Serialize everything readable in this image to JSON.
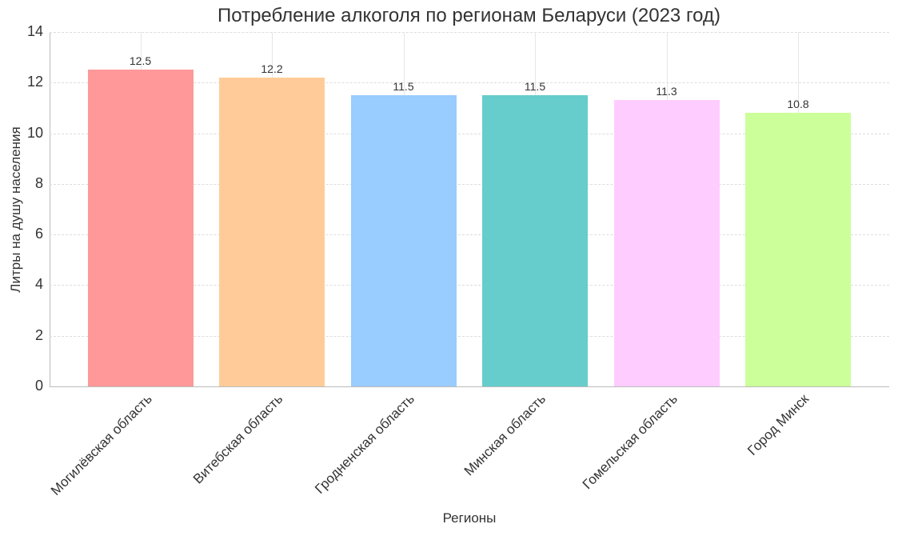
{
  "chart_data": {
    "type": "bar",
    "title": "Потребление алкоголя по регионам Беларуси (2023 год)",
    "xlabel": "Регионы",
    "ylabel": "Литры на душу населения",
    "categories": [
      "Могилёвская область",
      "Витебская область",
      "Гродненская область",
      "Минская область",
      "Гомельская область",
      "Город Минск"
    ],
    "values": [
      12.5,
      12.2,
      11.5,
      11.5,
      11.3,
      10.8
    ],
    "value_labels": [
      "12.5",
      "12.2",
      "11.5",
      "11.5",
      "11.3",
      "10.8"
    ],
    "colors": [
      "#ff9999",
      "#ffcc99",
      "#99ccff",
      "#66cccc",
      "#ffccff",
      "#ccff99"
    ],
    "ylim": [
      0,
      14
    ],
    "yticks": [
      "0",
      "2",
      "4",
      "6",
      "8",
      "10",
      "12",
      "14"
    ],
    "grid": true,
    "legend": null
  }
}
